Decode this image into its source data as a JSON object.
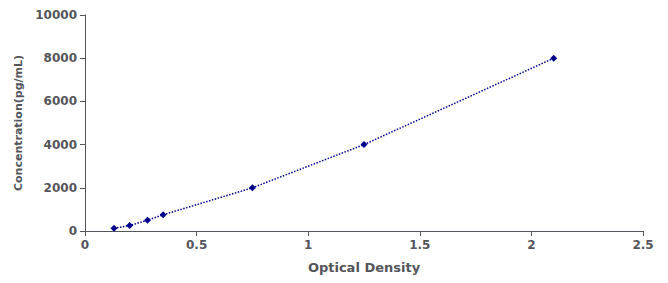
{
  "chart_data": {
    "type": "line",
    "x": [
      0.13,
      0.2,
      0.28,
      0.35,
      0.75,
      1.25,
      2.1
    ],
    "values": [
      125,
      250,
      500,
      750,
      2000,
      4000,
      8000
    ],
    "color": "#00008B",
    "marker": "diamond",
    "line_style": "dotted",
    "xlabel": "Optical Density",
    "ylabel": "Concentration(pg/mL)",
    "xlim": [
      0,
      2.5
    ],
    "ylim": [
      0,
      10000
    ],
    "xticks": [
      0,
      0.5,
      1,
      1.5,
      2,
      2.5
    ],
    "yticks": [
      0,
      2000,
      4000,
      6000,
      8000,
      10000
    ],
    "grid": false
  }
}
